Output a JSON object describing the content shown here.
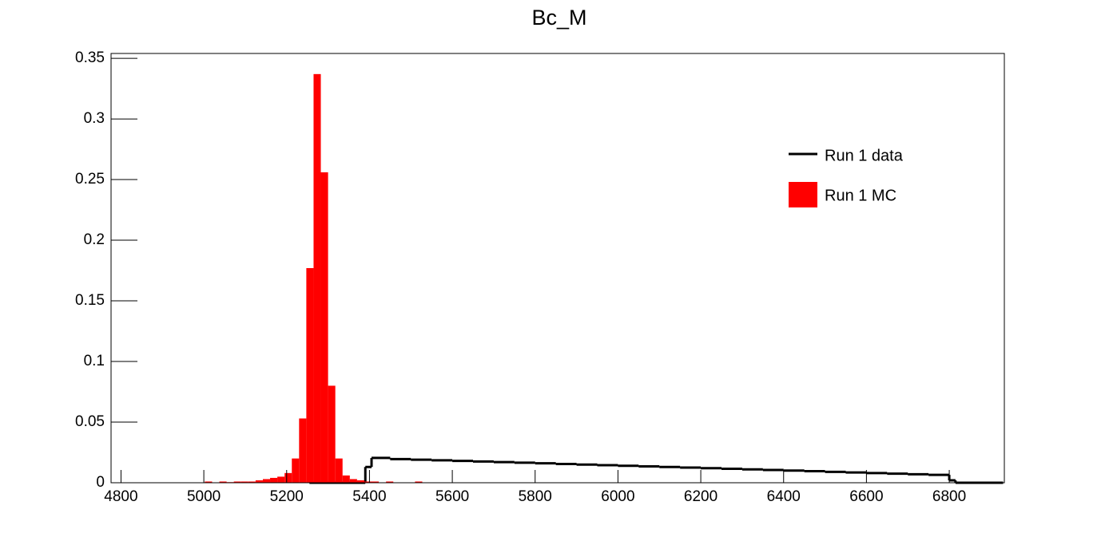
{
  "chart_data": {
    "type": "histogram",
    "title": "Bc_M",
    "xlim": [
      4776,
      6933
    ],
    "ylim": [
      0,
      0.354
    ],
    "xticks": [
      4800,
      5000,
      5200,
      5400,
      5600,
      5800,
      6000,
      6200,
      6400,
      6600,
      6800
    ],
    "yticks": [
      0,
      0.05,
      0.1,
      0.15,
      0.2,
      0.25,
      0.3,
      0.35
    ],
    "legend": "upper right",
    "series": [
      {
        "name": "Run 1 data",
        "color": "#000000",
        "style": "step",
        "bins": [
          5255,
          5390,
          5405,
          5450,
          5500,
          5550,
          5600,
          5650,
          5700,
          5750,
          5800,
          5850,
          5900,
          5950,
          6000,
          6050,
          6100,
          6150,
          6200,
          6250,
          6300,
          6350,
          6400,
          6450,
          6500,
          6550,
          6600,
          6650,
          6700,
          6750,
          6800,
          6815,
          6930
        ],
        "values": [
          0,
          0.013,
          0.0205,
          0.0195,
          0.019,
          0.0185,
          0.018,
          0.0175,
          0.017,
          0.0165,
          0.016,
          0.0155,
          0.015,
          0.0145,
          0.014,
          0.0135,
          0.013,
          0.0125,
          0.012,
          0.0115,
          0.011,
          0.0105,
          0.01,
          0.0095,
          0.009,
          0.0085,
          0.008,
          0.0075,
          0.007,
          0.0065,
          0.002,
          0
        ]
      },
      {
        "name": "Run 1 MC",
        "color": "#ff0000",
        "style": "fill",
        "bins": [
          4985,
          5002.5,
          5020,
          5037.5,
          5055,
          5072.5,
          5090,
          5107.5,
          5125,
          5142.5,
          5160,
          5177.5,
          5195,
          5212.5,
          5230,
          5247.5,
          5265,
          5282.5,
          5300,
          5317.5,
          5335,
          5352.5,
          5370,
          5387.5,
          5405,
          5422.5,
          5440,
          5457.5,
          5475,
          5492.5,
          5510,
          5527.5,
          5545
        ],
        "values": [
          0,
          0.001,
          0,
          0.001,
          0.0005,
          0.001,
          0.001,
          0.001,
          0.002,
          0.003,
          0.004,
          0.005,
          0.008,
          0.02,
          0.053,
          0.177,
          0.337,
          0.256,
          0.08,
          0.02,
          0.006,
          0.003,
          0.002,
          0.001,
          0.001,
          0,
          0.001,
          0,
          0,
          0,
          0.001,
          0
        ]
      }
    ]
  }
}
